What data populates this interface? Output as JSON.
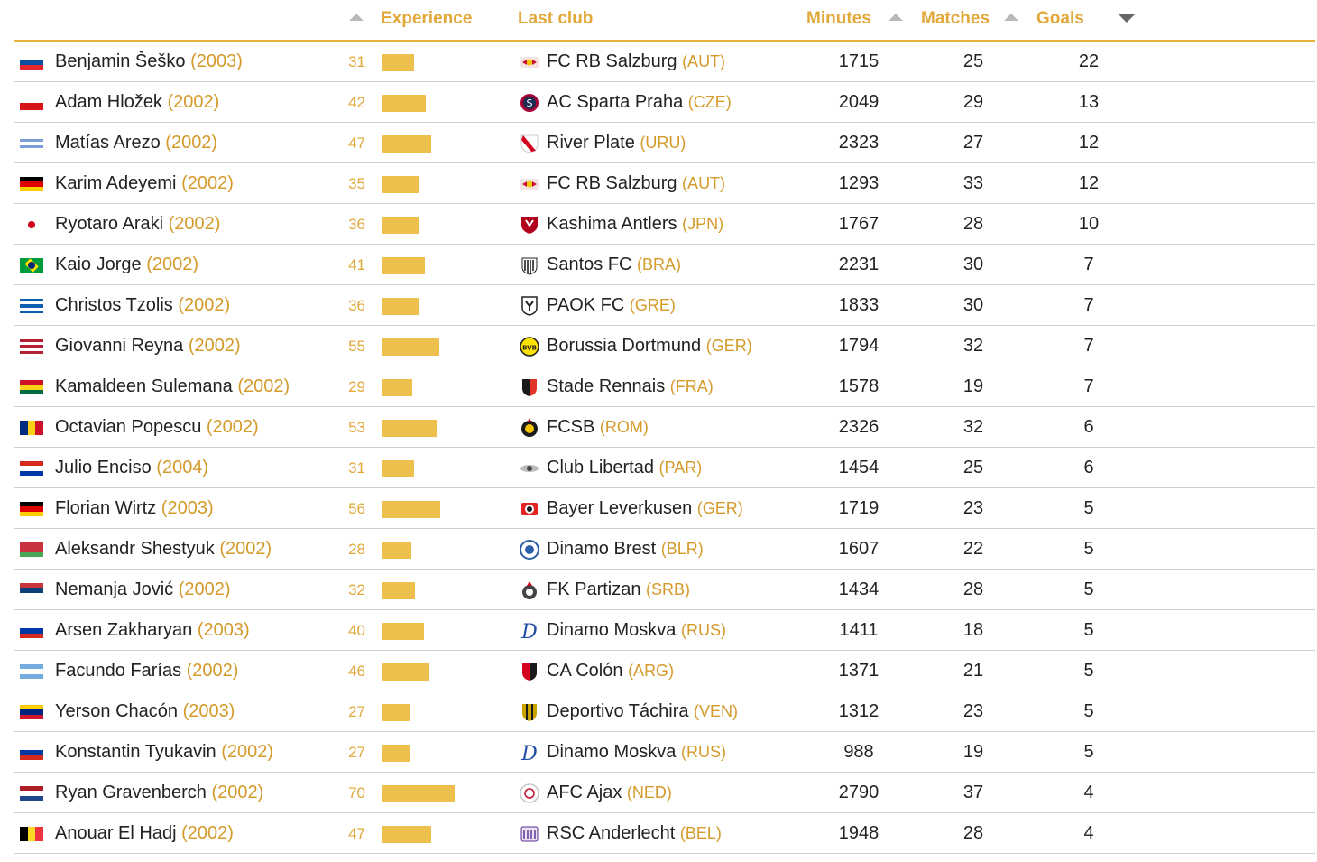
{
  "headers": {
    "experience": "Experience",
    "last_club": "Last club",
    "minutes": "Minutes",
    "matches": "Matches",
    "goals": "Goals"
  },
  "colors": {
    "accent": "#e2a83a",
    "bar": "#edc04e"
  },
  "players": [
    {
      "name": "Benjamin Šeško",
      "year": "(2003)",
      "experience": "31",
      "club": "FC RB Salzburg",
      "country": "(AUT)",
      "minutes": "1715",
      "matches": "25",
      "goals": "22",
      "flag_colors": [
        "#ffffff",
        "#0b4ea2",
        "#e4272c"
      ],
      "flag_dir": "h",
      "club_icon": "rb-salzburg-logo"
    },
    {
      "name": "Adam Hložek",
      "year": "(2002)",
      "experience": "42",
      "club": "AC Sparta Praha",
      "country": "(CZE)",
      "minutes": "2049",
      "matches": "29",
      "goals": "13",
      "flag_colors": [
        "#ffffff",
        "#d7141a"
      ],
      "flag_dir": "h",
      "club_icon": "sparta-praha-logo"
    },
    {
      "name": "Matías Arezo",
      "year": "(2002)",
      "experience": "47",
      "club": "River Plate",
      "country": "(URU)",
      "minutes": "2323",
      "matches": "27",
      "goals": "12",
      "flag_colors": [
        "#ffffff",
        "#7b9fd6",
        "#ffffff",
        "#7b9fd6",
        "#ffffff"
      ],
      "flag_dir": "h",
      "club_icon": "river-plate-logo"
    },
    {
      "name": "Karim Adeyemi",
      "year": "(2002)",
      "experience": "35",
      "club": "FC RB Salzburg",
      "country": "(AUT)",
      "minutes": "1293",
      "matches": "33",
      "goals": "12",
      "flag_colors": [
        "#000000",
        "#dd0000",
        "#ffce00"
      ],
      "flag_dir": "h",
      "club_icon": "rb-salzburg-logo"
    },
    {
      "name": "Ryotaro Araki",
      "year": "(2002)",
      "experience": "36",
      "club": "Kashima Antlers",
      "country": "(JPN)",
      "minutes": "1767",
      "matches": "28",
      "goals": "10",
      "flag_colors": [
        "#ffffff"
      ],
      "flag_dir": "h",
      "club_icon": "kashima-antlers-logo"
    },
    {
      "name": "Kaio Jorge",
      "year": "(2002)",
      "experience": "41",
      "club": "Santos FC",
      "country": "(BRA)",
      "minutes": "2231",
      "matches": "30",
      "goals": "7",
      "flag_colors": [
        "#009c3b"
      ],
      "flag_dir": "h",
      "club_icon": "santos-logo"
    },
    {
      "name": "Christos Tzolis",
      "year": "(2002)",
      "experience": "36",
      "club": "PAOK FC",
      "country": "(GRE)",
      "minutes": "1833",
      "matches": "30",
      "goals": "7",
      "flag_colors": [
        "#0d5eaf",
        "#ffffff",
        "#0d5eaf",
        "#ffffff",
        "#0d5eaf"
      ],
      "flag_dir": "h",
      "club_icon": "paok-logo"
    },
    {
      "name": "Giovanni Reyna",
      "year": "(2002)",
      "experience": "55",
      "club": "Borussia Dortmund",
      "country": "(GER)",
      "minutes": "1794",
      "matches": "32",
      "goals": "7",
      "flag_colors": [
        "#b22234",
        "#ffffff",
        "#b22234",
        "#ffffff",
        "#b22234"
      ],
      "flag_dir": "h",
      "club_icon": "dortmund-logo"
    },
    {
      "name": "Kamaldeen Sulemana",
      "year": "(2002)",
      "experience": "29",
      "club": "Stade Rennais",
      "country": "(FRA)",
      "minutes": "1578",
      "matches": "19",
      "goals": "7",
      "flag_colors": [
        "#ce1126",
        "#fcd116",
        "#006b3f"
      ],
      "flag_dir": "h",
      "club_icon": "rennes-logo"
    },
    {
      "name": "Octavian Popescu",
      "year": "(2002)",
      "experience": "53",
      "club": "FCSB",
      "country": "(ROM)",
      "minutes": "2326",
      "matches": "32",
      "goals": "6",
      "flag_colors": [
        "#002b7f",
        "#fcd116",
        "#ce1126"
      ],
      "flag_dir": "v",
      "club_icon": "fcsb-logo"
    },
    {
      "name": "Julio Enciso",
      "year": "(2004)",
      "experience": "31",
      "club": "Club Libertad",
      "country": "(PAR)",
      "minutes": "1454",
      "matches": "25",
      "goals": "6",
      "flag_colors": [
        "#d52b1e",
        "#ffffff",
        "#0038a8"
      ],
      "flag_dir": "h",
      "club_icon": "libertad-logo"
    },
    {
      "name": "Florian Wirtz",
      "year": "(2003)",
      "experience": "56",
      "club": "Bayer Leverkusen",
      "country": "(GER)",
      "minutes": "1719",
      "matches": "23",
      "goals": "5",
      "flag_colors": [
        "#000000",
        "#dd0000",
        "#ffce00"
      ],
      "flag_dir": "h",
      "club_icon": "leverkusen-logo"
    },
    {
      "name": "Aleksandr Shestyuk",
      "year": "(2002)",
      "experience": "28",
      "club": "Dinamo Brest",
      "country": "(BLR)",
      "minutes": "1607",
      "matches": "22",
      "goals": "5",
      "flag_colors": [
        "#c8313e",
        "#c8313e",
        "#4aa657"
      ],
      "flag_dir": "h",
      "club_icon": "dinamo-brest-logo"
    },
    {
      "name": "Nemanja Jović",
      "year": "(2002)",
      "experience": "32",
      "club": "FK Partizan",
      "country": "(SRB)",
      "minutes": "1434",
      "matches": "28",
      "goals": "5",
      "flag_colors": [
        "#c6363c",
        "#0c4076",
        "#ffffff"
      ],
      "flag_dir": "h",
      "club_icon": "partizan-logo"
    },
    {
      "name": "Arsen Zakharyan",
      "year": "(2003)",
      "experience": "40",
      "club": "Dinamo Moskva",
      "country": "(RUS)",
      "minutes": "1411",
      "matches": "18",
      "goals": "5",
      "flag_colors": [
        "#ffffff",
        "#0039a6",
        "#d52b1e"
      ],
      "flag_dir": "h",
      "club_icon": "dinamo-moskva-logo"
    },
    {
      "name": "Facundo Farías",
      "year": "(2002)",
      "experience": "46",
      "club": "CA Colón",
      "country": "(ARG)",
      "minutes": "1371",
      "matches": "21",
      "goals": "5",
      "flag_colors": [
        "#74acdf",
        "#ffffff",
        "#74acdf"
      ],
      "flag_dir": "h",
      "club_icon": "colon-logo"
    },
    {
      "name": "Yerson Chacón",
      "year": "(2003)",
      "experience": "27",
      "club": "Deportivo Táchira",
      "country": "(VEN)",
      "minutes": "1312",
      "matches": "23",
      "goals": "5",
      "flag_colors": [
        "#ffcc00",
        "#00247d",
        "#cf142b"
      ],
      "flag_dir": "h",
      "club_icon": "tachira-logo"
    },
    {
      "name": "Konstantin Tyukavin",
      "year": "(2002)",
      "experience": "27",
      "club": "Dinamo Moskva",
      "country": "(RUS)",
      "minutes": "988",
      "matches": "19",
      "goals": "5",
      "flag_colors": [
        "#ffffff",
        "#0039a6",
        "#d52b1e"
      ],
      "flag_dir": "h",
      "club_icon": "dinamo-moskva-logo"
    },
    {
      "name": "Ryan Gravenberch",
      "year": "(2002)",
      "experience": "70",
      "club": "AFC Ajax",
      "country": "(NED)",
      "minutes": "2790",
      "matches": "37",
      "goals": "4",
      "flag_colors": [
        "#ae1c28",
        "#ffffff",
        "#21468b"
      ],
      "flag_dir": "h",
      "club_icon": "ajax-logo"
    },
    {
      "name": "Anouar El Hadj",
      "year": "(2002)",
      "experience": "47",
      "club": "RSC Anderlecht",
      "country": "(BEL)",
      "minutes": "1948",
      "matches": "28",
      "goals": "4",
      "flag_colors": [
        "#000000",
        "#fdda24",
        "#ef3340"
      ],
      "flag_dir": "v",
      "club_icon": "anderlecht-logo"
    }
  ]
}
